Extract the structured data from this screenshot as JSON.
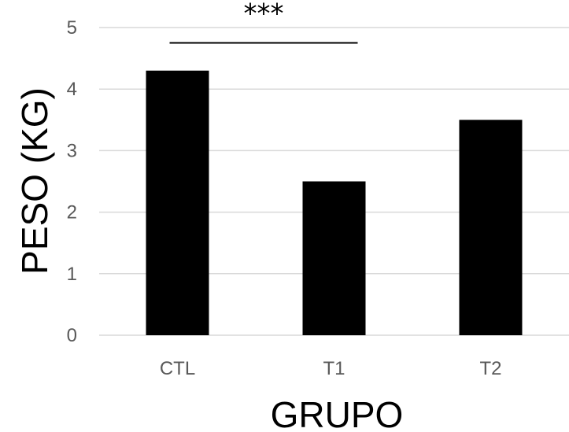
{
  "chart_data": {
    "type": "bar",
    "categories": [
      "CTL",
      "T1",
      "T2"
    ],
    "values": [
      4.3,
      2.5,
      3.5
    ],
    "title": "",
    "xlabel": "GRUPO",
    "ylabel": "PESO (KG)",
    "ylim": [
      0,
      5
    ],
    "yticks": [
      0,
      1,
      2,
      3,
      4,
      5
    ],
    "grid": true,
    "legend": "none",
    "bar_color": "#000000",
    "gridline_color": "#d9d9d9",
    "annotations": [
      {
        "text": "***",
        "from_category": "CTL",
        "to_category": "T1",
        "y": 4.75
      }
    ]
  }
}
